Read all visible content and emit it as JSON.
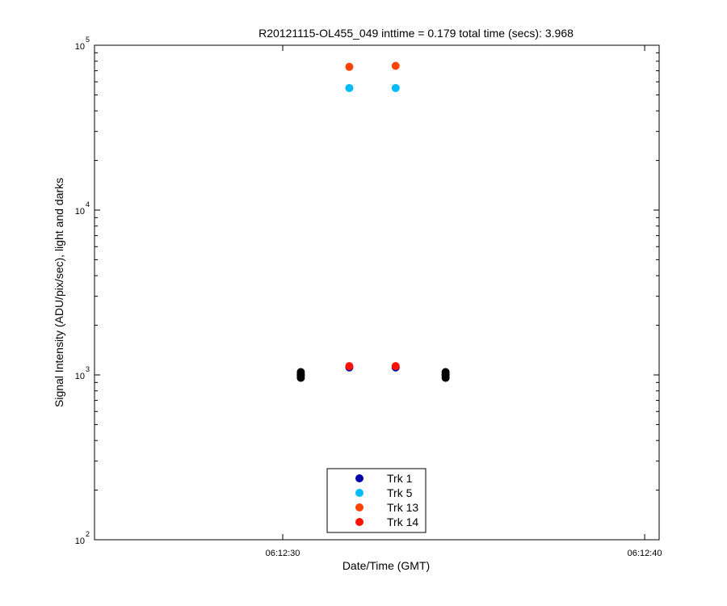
{
  "chart_data": {
    "type": "scatter",
    "title": "R20121115-OL455_049 inttime = 0.179 total time (secs): 3.968",
    "xlabel": "Date/Time (GMT)",
    "ylabel": "Signal Intensity (ADU/pix/sec), light and darks",
    "yscale": "log",
    "ylim": [
      100,
      100000
    ],
    "xlim": [
      "06:12:24.8",
      "06:12:40.4"
    ],
    "x_ticks": [
      "06:12:30",
      "06:12:40"
    ],
    "y_ticks": [
      {
        "base": "10",
        "exp": "2",
        "value": 100
      },
      {
        "base": "10",
        "exp": "3",
        "value": 1000
      },
      {
        "base": "10",
        "exp": "4",
        "value": 10000
      },
      {
        "base": "10",
        "exp": "5",
        "value": 100000
      }
    ],
    "grid": false,
    "legend_position": "bottom-center",
    "series": [
      {
        "name": "Trk 1",
        "color": "#0000aa",
        "x": [
          "06:12:31.84",
          "06:12:33.12"
        ],
        "y": [
          1110,
          1110
        ]
      },
      {
        "name": "Trk 5",
        "color": "#00bbff",
        "x": [
          "06:12:31.84",
          "06:12:33.12"
        ],
        "y": [
          55000,
          55000
        ]
      },
      {
        "name": "Trk 13",
        "color": "#ff4400",
        "x": [
          "06:12:31.84",
          "06:12:33.12"
        ],
        "y": [
          74000,
          75000
        ]
      },
      {
        "name": "Trk 14",
        "color": "#ff1100",
        "x": [
          "06:12:31.84",
          "06:12:33.12"
        ],
        "y": [
          1130,
          1130
        ]
      }
    ],
    "darks": {
      "color": "#000000",
      "x": [
        "06:12:30.5",
        "06:12:30.5",
        "06:12:30.5",
        "06:12:30.5",
        "06:12:34.5",
        "06:12:34.5",
        "06:12:34.5",
        "06:12:34.5"
      ],
      "y": [
        960,
        990,
        1010,
        1040,
        960,
        990,
        1010,
        1040
      ]
    }
  }
}
